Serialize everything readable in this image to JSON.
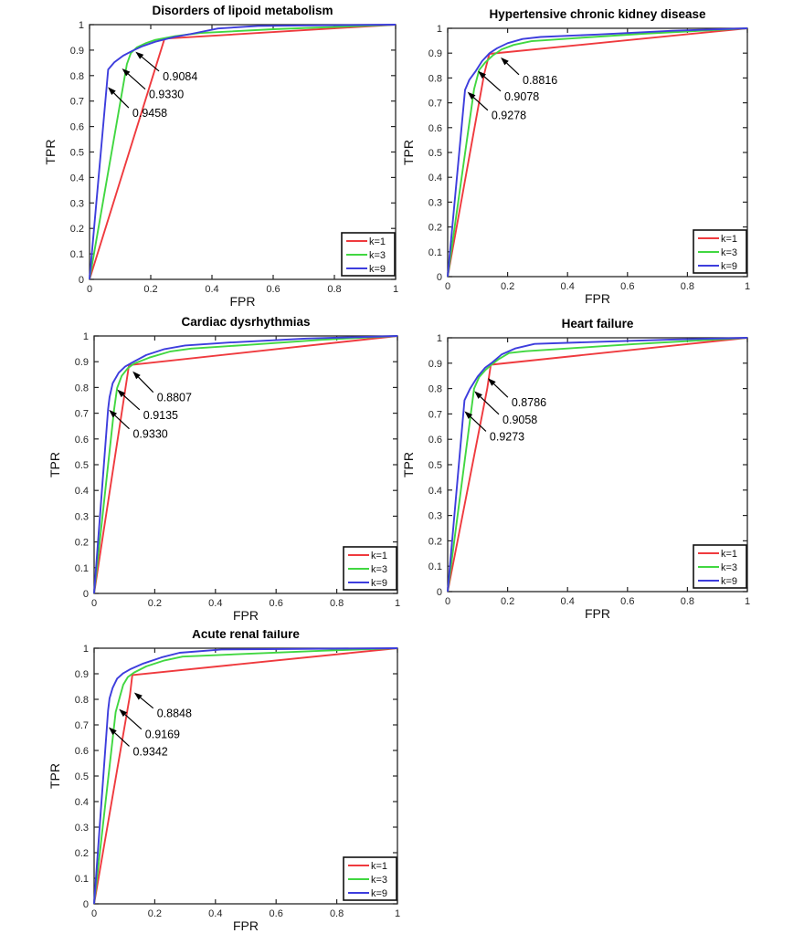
{
  "figure": {
    "background": "#ffffff",
    "axis_color": "#262626",
    "series_colors": {
      "k=1": "#ef3a3e",
      "k=3": "#41d741",
      "k=9": "#3d3ddd"
    },
    "legend_labels": [
      "k=1",
      "k=3",
      "k=9"
    ],
    "xlabel": "FPR",
    "ylabel": "TPR",
    "xticks": [
      0,
      0.2,
      0.4,
      0.6,
      0.8,
      1
    ],
    "xtick_labels": [
      "0",
      "0.2",
      "0.4",
      "0.6",
      "0.8",
      "1"
    ],
    "yticks": [
      0,
      0.1,
      0.2,
      0.3,
      0.4,
      0.5,
      0.6,
      0.7,
      0.8,
      0.9,
      1
    ],
    "ytick_labels": [
      "0",
      "0.1",
      "0.2",
      "0.3",
      "0.4",
      "0.5",
      "0.6",
      "0.7",
      "0.8",
      "0.9",
      "1"
    ]
  },
  "chart_data": [
    {
      "type": "line",
      "title": "Disorders of lipoid metabolism",
      "xlabel": "FPR",
      "ylabel": "TPR",
      "xlim": [
        0,
        1
      ],
      "ylim": [
        0,
        1
      ],
      "legend": {
        "position": "lower-right",
        "entries": [
          "k=1",
          "k=3",
          "k=9"
        ]
      },
      "series": [
        {
          "name": "k=1",
          "color": "#ef3a3e",
          "auc": 0.9084,
          "points": [
            [
              0,
              0
            ],
            [
              0.245,
              0.945
            ],
            [
              1,
              1
            ]
          ]
        },
        {
          "name": "k=3",
          "color": "#41d741",
          "auc": 0.933,
          "points": [
            [
              0,
              0
            ],
            [
              0.122,
              0.845
            ],
            [
              0.135,
              0.888
            ],
            [
              0.155,
              0.911
            ],
            [
              0.185,
              0.928
            ],
            [
              0.215,
              0.94
            ],
            [
              0.28,
              0.955
            ],
            [
              0.36,
              0.967
            ],
            [
              0.6,
              0.982
            ],
            [
              1,
              1
            ]
          ]
        },
        {
          "name": "k=9",
          "color": "#3d3ddd",
          "auc": 0.9458,
          "points": [
            [
              0,
              0
            ],
            [
              0.061,
              0.824
            ],
            [
              0.081,
              0.852
            ],
            [
              0.11,
              0.878
            ],
            [
              0.14,
              0.897
            ],
            [
              0.17,
              0.914
            ],
            [
              0.215,
              0.933
            ],
            [
              0.275,
              0.951
            ],
            [
              0.334,
              0.964
            ],
            [
              0.42,
              0.985
            ],
            [
              0.55,
              0.995
            ],
            [
              1,
              1
            ]
          ]
        }
      ],
      "annotations": [
        {
          "text": "0.9084",
          "series": "k=1",
          "label_pos": [
            0.239,
            0.796
          ],
          "arrow_tip": [
            0.15,
            0.894
          ]
        },
        {
          "text": "0.9330",
          "series": "k=3",
          "label_pos": [
            0.194,
            0.725
          ],
          "arrow_tip": [
            0.106,
            0.828
          ]
        },
        {
          "text": "0.9458",
          "series": "k=9",
          "label_pos": [
            0.14,
            0.652
          ],
          "arrow_tip": [
            0.06,
            0.755
          ]
        }
      ]
    },
    {
      "type": "line",
      "title": "Hypertensive chronic kidney disease",
      "xlabel": "FPR",
      "ylabel": "TPR",
      "xlim": [
        0,
        1
      ],
      "ylim": [
        0,
        1
      ],
      "legend": {
        "position": "lower-right",
        "entries": [
          "k=1",
          "k=3",
          "k=9"
        ]
      },
      "series": [
        {
          "name": "k=1",
          "color": "#ef3a3e",
          "auc": 0.8816,
          "points": [
            [
              0,
              0
            ],
            [
              0.122,
              0.817
            ],
            [
              0.139,
              0.897
            ],
            [
              1,
              1
            ]
          ]
        },
        {
          "name": "k=3",
          "color": "#41d741",
          "auc": 0.9078,
          "points": [
            [
              0,
              0
            ],
            [
              0.088,
              0.755
            ],
            [
              0.105,
              0.832
            ],
            [
              0.125,
              0.862
            ],
            [
              0.15,
              0.89
            ],
            [
              0.18,
              0.915
            ],
            [
              0.22,
              0.933
            ],
            [
              0.28,
              0.948
            ],
            [
              0.42,
              0.96
            ],
            [
              0.65,
              0.978
            ],
            [
              1,
              1
            ]
          ]
        },
        {
          "name": "k=9",
          "color": "#3d3ddd",
          "auc": 0.9278,
          "points": [
            [
              0,
              0
            ],
            [
              0.058,
              0.752
            ],
            [
              0.072,
              0.792
            ],
            [
              0.092,
              0.825
            ],
            [
              0.115,
              0.868
            ],
            [
              0.14,
              0.9
            ],
            [
              0.165,
              0.92
            ],
            [
              0.2,
              0.94
            ],
            [
              0.25,
              0.957
            ],
            [
              0.31,
              0.965
            ],
            [
              0.5,
              0.975
            ],
            [
              0.75,
              0.99
            ],
            [
              1,
              1
            ]
          ]
        }
      ],
      "annotations": [
        {
          "text": "0.8816",
          "series": "k=1",
          "label_pos": [
            0.25,
            0.791
          ],
          "arrow_tip": [
            0.177,
            0.883
          ]
        },
        {
          "text": "0.9078",
          "series": "k=3",
          "label_pos": [
            0.189,
            0.725
          ],
          "arrow_tip": [
            0.101,
            0.828
          ]
        },
        {
          "text": "0.9278",
          "series": "k=9",
          "label_pos": [
            0.146,
            0.648
          ],
          "arrow_tip": [
            0.066,
            0.744
          ]
        }
      ]
    },
    {
      "type": "line",
      "title": "Cardiac dysrhythmias",
      "xlabel": "FPR",
      "ylabel": "TPR",
      "xlim": [
        0,
        1
      ],
      "ylim": [
        0,
        1
      ],
      "legend": {
        "position": "lower-right",
        "entries": [
          "k=1",
          "k=3",
          "k=9"
        ]
      },
      "series": [
        {
          "name": "k=1",
          "color": "#ef3a3e",
          "auc": 0.8807,
          "points": [
            [
              0,
              0
            ],
            [
              0.115,
              0.887
            ],
            [
              1,
              1
            ]
          ]
        },
        {
          "name": "k=3",
          "color": "#41d741",
          "auc": 0.9135,
          "points": [
            [
              0,
              0
            ],
            [
              0.066,
              0.715
            ],
            [
              0.076,
              0.798
            ],
            [
              0.091,
              0.845
            ],
            [
              0.111,
              0.875
            ],
            [
              0.132,
              0.893
            ],
            [
              0.182,
              0.916
            ],
            [
              0.252,
              0.94
            ],
            [
              0.32,
              0.951
            ],
            [
              0.5,
              0.965
            ],
            [
              0.75,
              0.985
            ],
            [
              1,
              1
            ]
          ]
        },
        {
          "name": "k=9",
          "color": "#3d3ddd",
          "auc": 0.933,
          "points": [
            [
              0,
              0
            ],
            [
              0.046,
              0.715
            ],
            [
              0.051,
              0.762
            ],
            [
              0.061,
              0.816
            ],
            [
              0.081,
              0.857
            ],
            [
              0.102,
              0.881
            ],
            [
              0.127,
              0.898
            ],
            [
              0.172,
              0.926
            ],
            [
              0.232,
              0.949
            ],
            [
              0.3,
              0.963
            ],
            [
              0.45,
              0.975
            ],
            [
              0.7,
              0.99
            ],
            [
              1,
              1
            ]
          ]
        }
      ],
      "annotations": [
        {
          "text": "0.8807",
          "series": "k=1",
          "label_pos": [
            0.207,
            0.76
          ],
          "arrow_tip": [
            0.127,
            0.863
          ]
        },
        {
          "text": "0.9135",
          "series": "k=3",
          "label_pos": [
            0.162,
            0.692
          ],
          "arrow_tip": [
            0.076,
            0.792
          ]
        },
        {
          "text": "0.9330",
          "series": "k=9",
          "label_pos": [
            0.128,
            0.618
          ],
          "arrow_tip": [
            0.049,
            0.713
          ]
        }
      ]
    },
    {
      "type": "line",
      "title": "Heart failure",
      "xlabel": "FPR",
      "ylabel": "TPR",
      "xlim": [
        0,
        1
      ],
      "ylim": [
        0,
        1
      ],
      "legend": {
        "position": "lower-right",
        "entries": [
          "k=1",
          "k=3",
          "k=9"
        ]
      },
      "series": [
        {
          "name": "k=1",
          "color": "#ef3a3e",
          "auc": 0.8786,
          "points": [
            [
              0,
              0
            ],
            [
              0.132,
              0.8
            ],
            [
              0.144,
              0.894
            ],
            [
              1,
              1
            ]
          ]
        },
        {
          "name": "k=3",
          "color": "#41d741",
          "auc": 0.9058,
          "points": [
            [
              0,
              0
            ],
            [
              0.088,
              0.8
            ],
            [
              0.105,
              0.845
            ],
            [
              0.125,
              0.872
            ],
            [
              0.145,
              0.893
            ],
            [
              0.17,
              0.916
            ],
            [
              0.205,
              0.94
            ],
            [
              0.26,
              0.947
            ],
            [
              0.4,
              0.958
            ],
            [
              0.62,
              0.975
            ],
            [
              1,
              1
            ]
          ]
        },
        {
          "name": "k=9",
          "color": "#3d3ddd",
          "auc": 0.9273,
          "points": [
            [
              0,
              0
            ],
            [
              0.056,
              0.754
            ],
            [
              0.075,
              0.8
            ],
            [
              0.1,
              0.847
            ],
            [
              0.125,
              0.882
            ],
            [
              0.148,
              0.902
            ],
            [
              0.18,
              0.934
            ],
            [
              0.225,
              0.958
            ],
            [
              0.29,
              0.976
            ],
            [
              0.5,
              0.984
            ],
            [
              0.75,
              0.993
            ],
            [
              1,
              1
            ]
          ]
        }
      ],
      "annotations": [
        {
          "text": "0.8786",
          "series": "k=1",
          "label_pos": [
            0.213,
            0.744
          ],
          "arrow_tip": [
            0.134,
            0.841
          ]
        },
        {
          "text": "0.9058",
          "series": "k=3",
          "label_pos": [
            0.183,
            0.677
          ],
          "arrow_tip": [
            0.089,
            0.79
          ]
        },
        {
          "text": "0.9273",
          "series": "k=9",
          "label_pos": [
            0.14,
            0.61
          ],
          "arrow_tip": [
            0.056,
            0.711
          ]
        }
      ]
    },
    {
      "type": "line",
      "title": "Acute renal failure",
      "xlabel": "FPR",
      "ylabel": "TPR",
      "xlim": [
        0,
        1
      ],
      "ylim": [
        0,
        1
      ],
      "legend": {
        "position": "lower-right",
        "entries": [
          "k=1",
          "k=3",
          "k=9"
        ]
      },
      "series": [
        {
          "name": "k=1",
          "color": "#ef3a3e",
          "auc": 0.8848,
          "points": [
            [
              0,
              0
            ],
            [
              0.118,
              0.815
            ],
            [
              0.126,
              0.895
            ],
            [
              1,
              1
            ]
          ]
        },
        {
          "name": "k=3",
          "color": "#41d741",
          "auc": 0.9169,
          "points": [
            [
              0,
              0
            ],
            [
              0.071,
              0.75
            ],
            [
              0.086,
              0.815
            ],
            [
              0.096,
              0.857
            ],
            [
              0.111,
              0.887
            ],
            [
              0.132,
              0.905
            ],
            [
              0.172,
              0.929
            ],
            [
              0.232,
              0.952
            ],
            [
              0.292,
              0.967
            ],
            [
              0.5,
              0.978
            ],
            [
              0.75,
              0.99
            ],
            [
              1,
              1
            ]
          ]
        },
        {
          "name": "k=9",
          "color": "#3d3ddd",
          "auc": 0.9342,
          "points": [
            [
              0,
              0
            ],
            [
              0.046,
              0.756
            ],
            [
              0.051,
              0.804
            ],
            [
              0.061,
              0.845
            ],
            [
              0.076,
              0.881
            ],
            [
              0.096,
              0.902
            ],
            [
              0.121,
              0.919
            ],
            [
              0.162,
              0.94
            ],
            [
              0.222,
              0.964
            ],
            [
              0.282,
              0.982
            ],
            [
              0.42,
              0.995
            ],
            [
              1,
              1
            ]
          ]
        }
      ],
      "annotations": [
        {
          "text": "0.8848",
          "series": "k=1",
          "label_pos": [
            0.207,
            0.744
          ],
          "arrow_tip": [
            0.132,
            0.827
          ]
        },
        {
          "text": "0.9169",
          "series": "k=3",
          "label_pos": [
            0.168,
            0.662
          ],
          "arrow_tip": [
            0.082,
            0.762
          ]
        },
        {
          "text": "0.9342",
          "series": "k=9",
          "label_pos": [
            0.128,
            0.595
          ],
          "arrow_tip": [
            0.048,
            0.691
          ]
        }
      ]
    }
  ]
}
